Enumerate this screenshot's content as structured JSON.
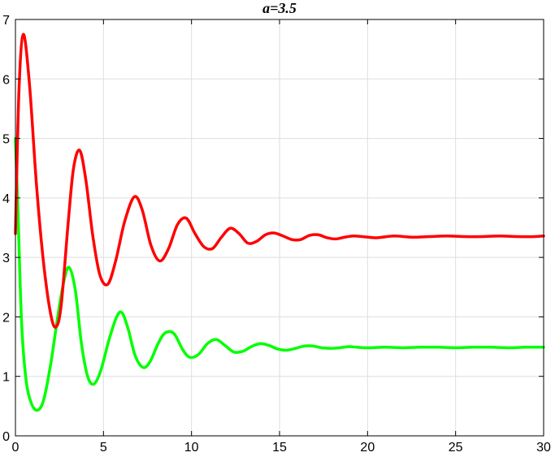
{
  "chart_data": {
    "type": "line",
    "title": "a=3.5",
    "xlabel": "",
    "ylabel": "",
    "xlim": [
      0,
      30
    ],
    "ylim": [
      0,
      7
    ],
    "grid": true,
    "x_ticks": [
      0,
      5,
      10,
      15,
      20,
      25,
      30
    ],
    "y_ticks": [
      0,
      1,
      2,
      3,
      4,
      5,
      6,
      7
    ],
    "series": [
      {
        "color": "#ff0000",
        "x": [
          0,
          0.2,
          0.45,
          0.8,
          1.2,
          1.6,
          2.0,
          2.3,
          2.6,
          3.0,
          3.3,
          3.65,
          4.0,
          4.4,
          4.8,
          5.25,
          5.7,
          6.2,
          6.75,
          7.2,
          7.7,
          8.2,
          8.7,
          9.2,
          9.7,
          10.2,
          10.7,
          11.2,
          11.7,
          12.2,
          12.7,
          13.2,
          13.7,
          14.2,
          14.7,
          15.2,
          15.7,
          16.2,
          16.7,
          17.2,
          17.7,
          18.2,
          18.7,
          19.2,
          19.7,
          20.5,
          21.5,
          22.5,
          23.5,
          24.5,
          25.5,
          26.5,
          27.5,
          28.5,
          29.5,
          30
        ],
        "y": [
          3.4,
          5.8,
          6.75,
          5.9,
          4.2,
          2.9,
          2.05,
          1.83,
          2.2,
          3.6,
          4.5,
          4.8,
          4.3,
          3.35,
          2.7,
          2.55,
          2.95,
          3.6,
          4.02,
          3.8,
          3.2,
          2.94,
          3.15,
          3.55,
          3.66,
          3.4,
          3.18,
          3.15,
          3.34,
          3.49,
          3.4,
          3.24,
          3.27,
          3.38,
          3.41,
          3.36,
          3.3,
          3.3,
          3.37,
          3.38,
          3.33,
          3.31,
          3.34,
          3.36,
          3.35,
          3.33,
          3.36,
          3.34,
          3.35,
          3.36,
          3.35,
          3.35,
          3.36,
          3.35,
          3.35,
          3.36
        ]
      },
      {
        "color": "#00ff00",
        "x": [
          0,
          0.15,
          0.35,
          0.6,
          0.9,
          1.25,
          1.6,
          2.0,
          2.4,
          2.75,
          3.05,
          3.4,
          3.75,
          4.1,
          4.45,
          4.85,
          5.3,
          5.75,
          6.05,
          6.4,
          6.8,
          7.25,
          7.65,
          8.1,
          8.5,
          9.0,
          9.5,
          9.9,
          10.4,
          10.9,
          11.4,
          11.9,
          12.4,
          12.9,
          13.4,
          13.9,
          14.4,
          14.9,
          15.4,
          15.9,
          16.4,
          16.9,
          17.4,
          17.9,
          18.4,
          18.9,
          19.4,
          20,
          21,
          22,
          23,
          24,
          25,
          26,
          27,
          28,
          29,
          30
        ],
        "y": [
          5.0,
          3.7,
          1.9,
          0.95,
          0.55,
          0.43,
          0.6,
          1.2,
          2.0,
          2.6,
          2.83,
          2.45,
          1.55,
          1.0,
          0.87,
          1.1,
          1.6,
          2.0,
          2.07,
          1.8,
          1.35,
          1.15,
          1.25,
          1.55,
          1.73,
          1.72,
          1.45,
          1.32,
          1.37,
          1.55,
          1.62,
          1.52,
          1.41,
          1.42,
          1.5,
          1.55,
          1.52,
          1.46,
          1.44,
          1.47,
          1.51,
          1.51,
          1.48,
          1.47,
          1.48,
          1.5,
          1.49,
          1.48,
          1.49,
          1.48,
          1.49,
          1.49,
          1.48,
          1.49,
          1.49,
          1.48,
          1.49,
          1.49
        ]
      }
    ]
  }
}
